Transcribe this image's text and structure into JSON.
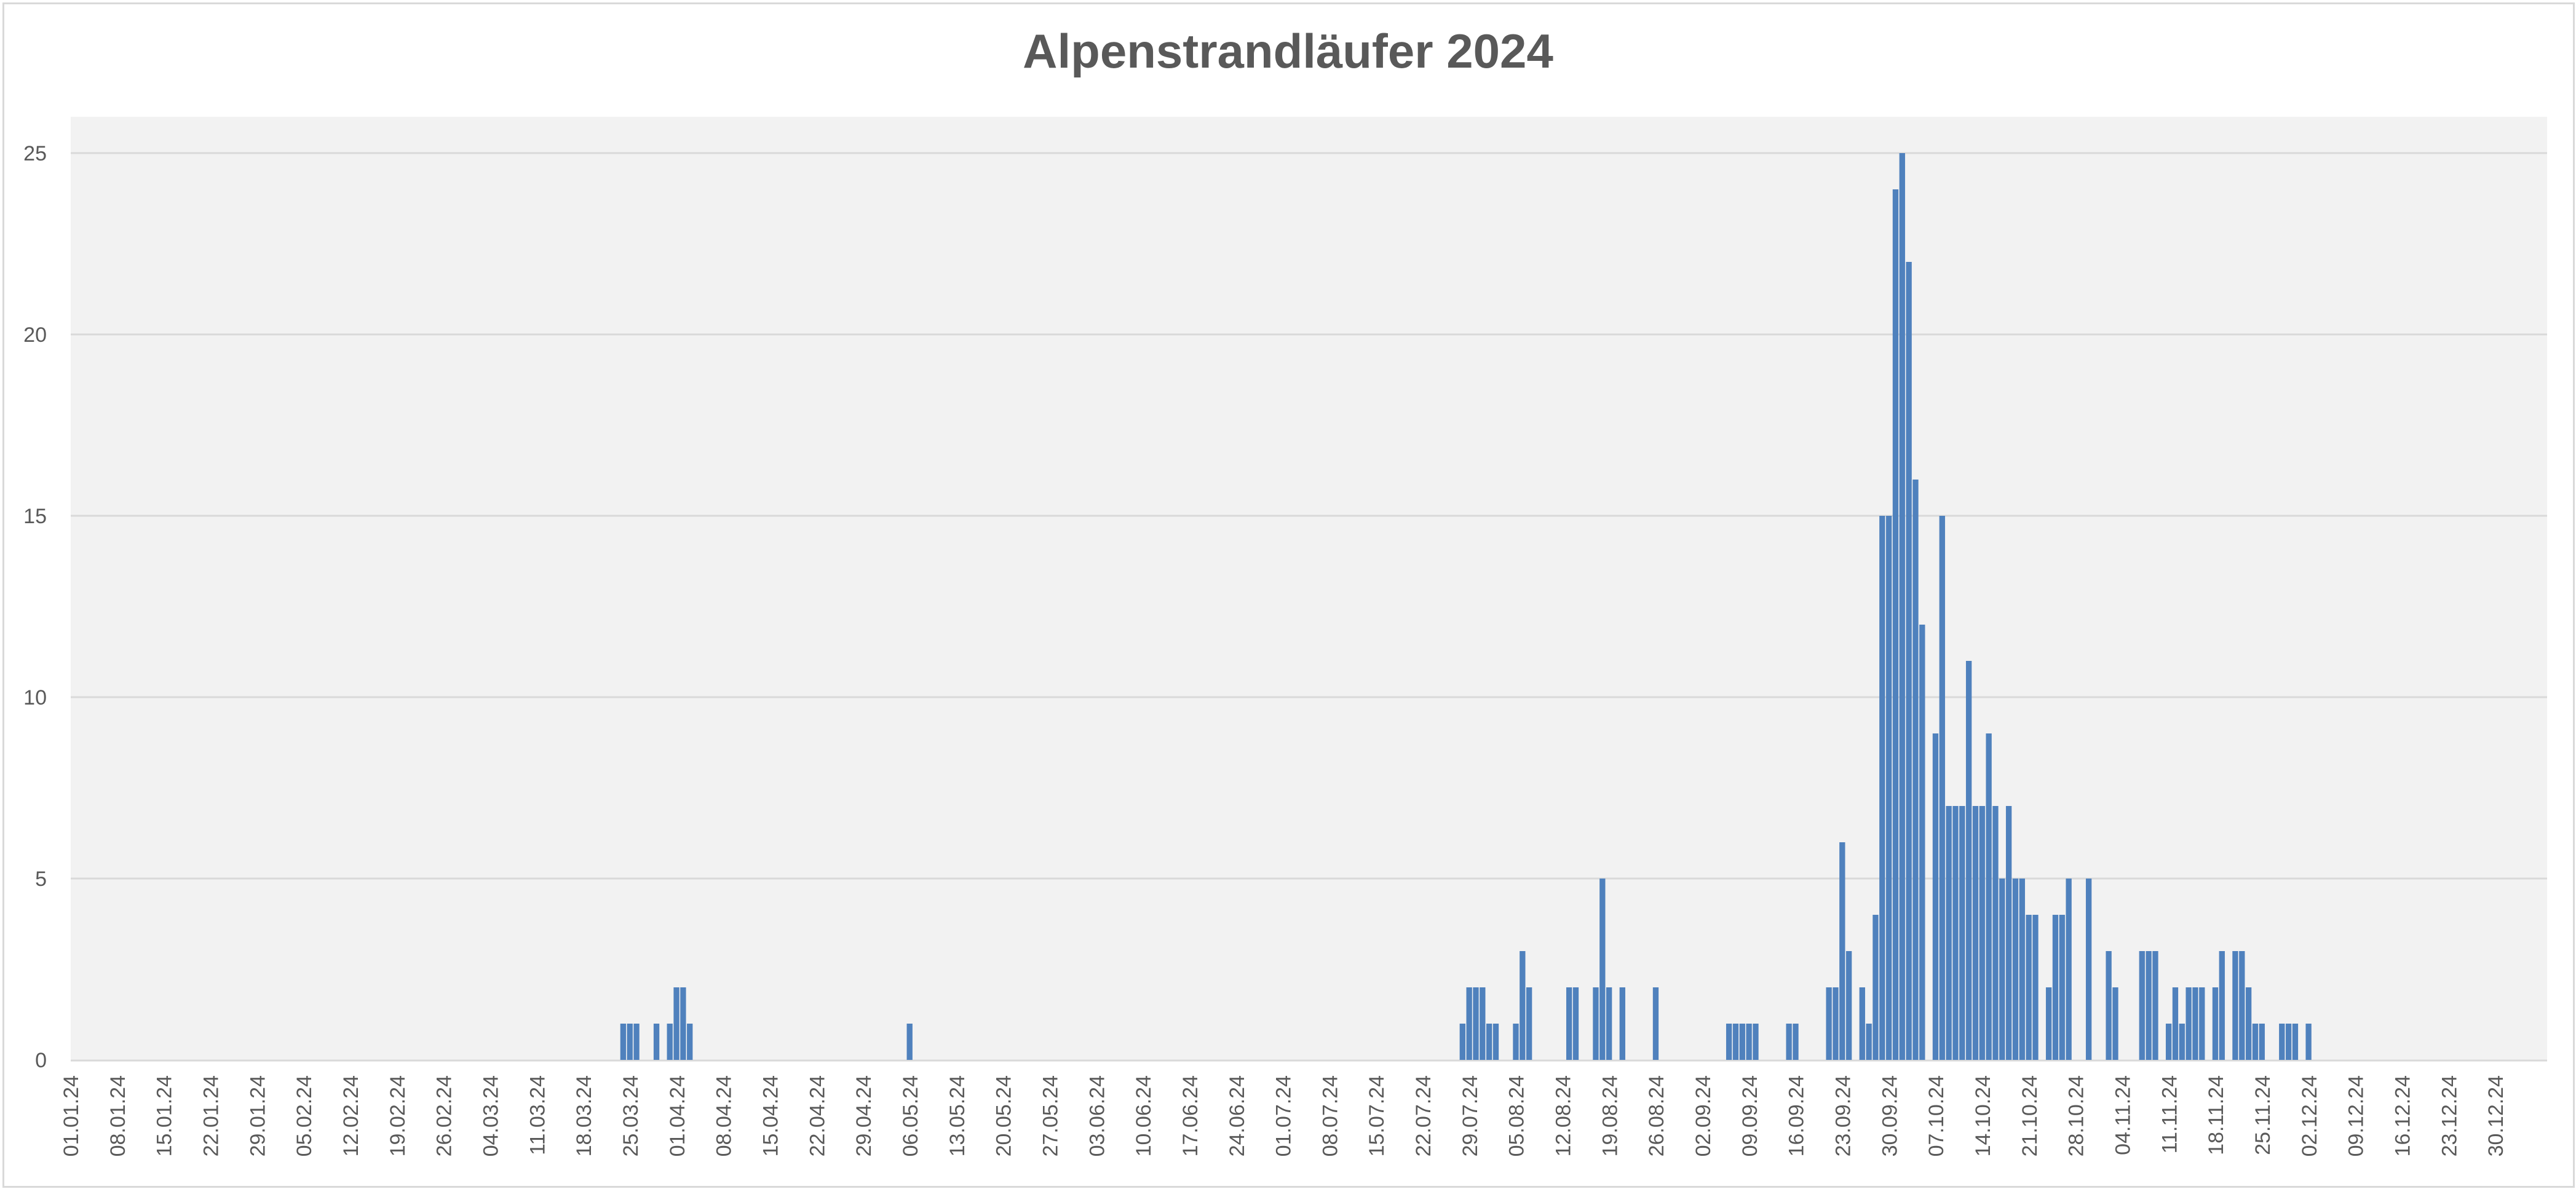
{
  "chart_data": {
    "type": "bar",
    "title": "Alpenstrandläufer 2024",
    "xlabel": "",
    "ylabel": "",
    "ylim": [
      0,
      27
    ],
    "yticks": [
      0,
      5,
      10,
      15,
      20,
      25
    ],
    "grid": true,
    "legend": "none",
    "bar_color": "#4f81bd",
    "x_start": "2024-01-01",
    "x_end": "2024-12-31",
    "x_tick_labels": [
      "01.01.24",
      "08.01.24",
      "15.01.24",
      "22.01.24",
      "29.01.24",
      "05.02.24",
      "12.02.24",
      "19.02.24",
      "26.02.24",
      "04.03.24",
      "11.03.24",
      "18.03.24",
      "25.03.24",
      "01.04.24",
      "08.04.24",
      "15.04.24",
      "22.04.24",
      "29.04.24",
      "06.05.24",
      "13.05.24",
      "20.05.24",
      "27.05.24",
      "03.06.24",
      "10.06.24",
      "17.06.24",
      "24.06.24",
      "01.07.24",
      "08.07.24",
      "15.07.24",
      "22.07.24",
      "29.07.24",
      "05.08.24",
      "12.08.24",
      "19.08.24",
      "26.08.24",
      "02.09.24",
      "09.09.24",
      "16.09.24",
      "23.09.24",
      "30.09.24",
      "07.10.24",
      "14.10.24",
      "21.10.24",
      "28.10.24",
      "04.11.24",
      "11.11.24",
      "18.11.24",
      "25.11.24",
      "02.12.24",
      "09.12.24",
      "16.12.24",
      "23.12.24",
      "30.12.24"
    ],
    "points": [
      {
        "date": "2024-03-24",
        "value": 1
      },
      {
        "date": "2024-03-25",
        "value": 1
      },
      {
        "date": "2024-03-26",
        "value": 1
      },
      {
        "date": "2024-03-29",
        "value": 1
      },
      {
        "date": "2024-03-31",
        "value": 1
      },
      {
        "date": "2024-04-01",
        "value": 2
      },
      {
        "date": "2024-04-02",
        "value": 2
      },
      {
        "date": "2024-04-03",
        "value": 1
      },
      {
        "date": "2024-05-06",
        "value": 1
      },
      {
        "date": "2024-07-28",
        "value": 1
      },
      {
        "date": "2024-07-29",
        "value": 2
      },
      {
        "date": "2024-07-30",
        "value": 2
      },
      {
        "date": "2024-07-31",
        "value": 2
      },
      {
        "date": "2024-08-01",
        "value": 1
      },
      {
        "date": "2024-08-02",
        "value": 1
      },
      {
        "date": "2024-08-05",
        "value": 1
      },
      {
        "date": "2024-08-06",
        "value": 3
      },
      {
        "date": "2024-08-07",
        "value": 2
      },
      {
        "date": "2024-08-13",
        "value": 2
      },
      {
        "date": "2024-08-14",
        "value": 2
      },
      {
        "date": "2024-08-17",
        "value": 2
      },
      {
        "date": "2024-08-18",
        "value": 5
      },
      {
        "date": "2024-08-19",
        "value": 2
      },
      {
        "date": "2024-08-21",
        "value": 2
      },
      {
        "date": "2024-08-26",
        "value": 2
      },
      {
        "date": "2024-09-06",
        "value": 1
      },
      {
        "date": "2024-09-07",
        "value": 1
      },
      {
        "date": "2024-09-08",
        "value": 1
      },
      {
        "date": "2024-09-09",
        "value": 1
      },
      {
        "date": "2024-09-10",
        "value": 1
      },
      {
        "date": "2024-09-15",
        "value": 1
      },
      {
        "date": "2024-09-16",
        "value": 1
      },
      {
        "date": "2024-09-21",
        "value": 2
      },
      {
        "date": "2024-09-22",
        "value": 2
      },
      {
        "date": "2024-09-23",
        "value": 6
      },
      {
        "date": "2024-09-24",
        "value": 3
      },
      {
        "date": "2024-09-26",
        "value": 2
      },
      {
        "date": "2024-09-27",
        "value": 1
      },
      {
        "date": "2024-09-28",
        "value": 4
      },
      {
        "date": "2024-09-29",
        "value": 15
      },
      {
        "date": "2024-09-30",
        "value": 15
      },
      {
        "date": "2024-10-01",
        "value": 24
      },
      {
        "date": "2024-10-02",
        "value": 25
      },
      {
        "date": "2024-10-03",
        "value": 22
      },
      {
        "date": "2024-10-04",
        "value": 16
      },
      {
        "date": "2024-10-05",
        "value": 12
      },
      {
        "date": "2024-10-07",
        "value": 9
      },
      {
        "date": "2024-10-08",
        "value": 15
      },
      {
        "date": "2024-10-09",
        "value": 7
      },
      {
        "date": "2024-10-10",
        "value": 7
      },
      {
        "date": "2024-10-11",
        "value": 7
      },
      {
        "date": "2024-10-12",
        "value": 11
      },
      {
        "date": "2024-10-13",
        "value": 7
      },
      {
        "date": "2024-10-14",
        "value": 7
      },
      {
        "date": "2024-10-15",
        "value": 9
      },
      {
        "date": "2024-10-16",
        "value": 7
      },
      {
        "date": "2024-10-17",
        "value": 5
      },
      {
        "date": "2024-10-18",
        "value": 7
      },
      {
        "date": "2024-10-19",
        "value": 5
      },
      {
        "date": "2024-10-20",
        "value": 5
      },
      {
        "date": "2024-10-21",
        "value": 4
      },
      {
        "date": "2024-10-22",
        "value": 4
      },
      {
        "date": "2024-10-24",
        "value": 2
      },
      {
        "date": "2024-10-25",
        "value": 4
      },
      {
        "date": "2024-10-26",
        "value": 4
      },
      {
        "date": "2024-10-27",
        "value": 5
      },
      {
        "date": "2024-10-30",
        "value": 5
      },
      {
        "date": "2024-11-02",
        "value": 3
      },
      {
        "date": "2024-11-03",
        "value": 2
      },
      {
        "date": "2024-11-07",
        "value": 3
      },
      {
        "date": "2024-11-08",
        "value": 3
      },
      {
        "date": "2024-11-09",
        "value": 3
      },
      {
        "date": "2024-11-11",
        "value": 1
      },
      {
        "date": "2024-11-12",
        "value": 2
      },
      {
        "date": "2024-11-13",
        "value": 1
      },
      {
        "date": "2024-11-14",
        "value": 2
      },
      {
        "date": "2024-11-15",
        "value": 2
      },
      {
        "date": "2024-11-16",
        "value": 2
      },
      {
        "date": "2024-11-18",
        "value": 2
      },
      {
        "date": "2024-11-19",
        "value": 3
      },
      {
        "date": "2024-11-21",
        "value": 3
      },
      {
        "date": "2024-11-22",
        "value": 3
      },
      {
        "date": "2024-11-23",
        "value": 2
      },
      {
        "date": "2024-11-24",
        "value": 1
      },
      {
        "date": "2024-11-25",
        "value": 1
      },
      {
        "date": "2024-11-28",
        "value": 1
      },
      {
        "date": "2024-11-29",
        "value": 1
      },
      {
        "date": "2024-11-30",
        "value": 1
      },
      {
        "date": "2024-12-02",
        "value": 1
      }
    ]
  }
}
